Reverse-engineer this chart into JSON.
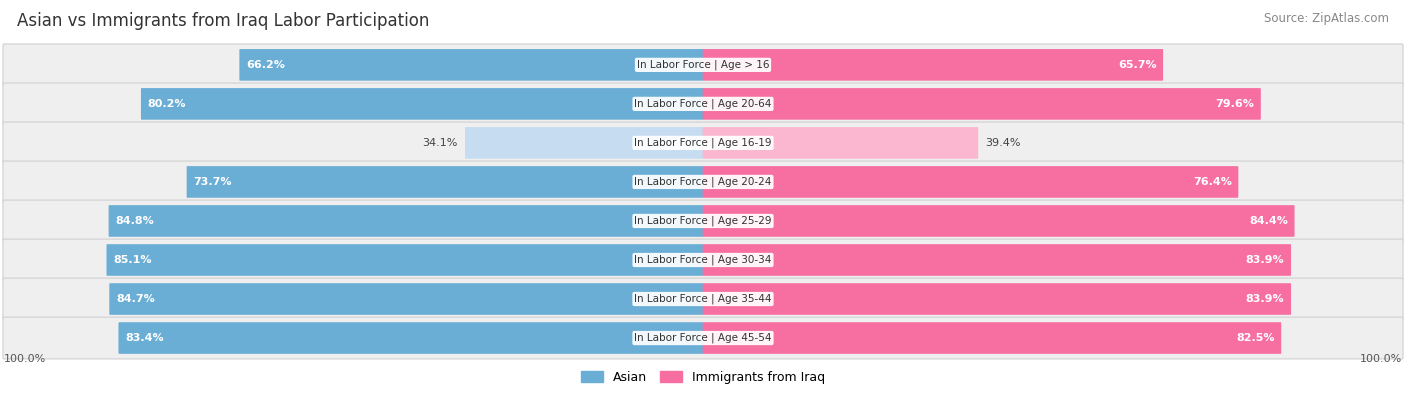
{
  "title": "Asian vs Immigrants from Iraq Labor Participation",
  "source": "Source: ZipAtlas.com",
  "categories": [
    "In Labor Force | Age > 16",
    "In Labor Force | Age 20-64",
    "In Labor Force | Age 16-19",
    "In Labor Force | Age 20-24",
    "In Labor Force | Age 25-29",
    "In Labor Force | Age 30-34",
    "In Labor Force | Age 35-44",
    "In Labor Force | Age 45-54"
  ],
  "asian_values": [
    66.2,
    80.2,
    34.1,
    73.7,
    84.8,
    85.1,
    84.7,
    83.4
  ],
  "iraq_values": [
    65.7,
    79.6,
    39.4,
    76.4,
    84.4,
    83.9,
    83.9,
    82.5
  ],
  "asian_color": "#6aaed6",
  "asian_color_light": "#c6dcf0",
  "iraq_color": "#f76fa1",
  "iraq_color_light": "#fbb6d0",
  "row_bg_color": "#efefef",
  "max_value": 100.0,
  "legend_asian": "Asian",
  "legend_iraq": "Immigrants from Iraq",
  "bottom_left_label": "100.0%",
  "bottom_right_label": "100.0%",
  "title_fontsize": 12,
  "source_fontsize": 8.5,
  "bar_label_fontsize": 8,
  "category_fontsize": 7.5,
  "legend_fontsize": 9
}
